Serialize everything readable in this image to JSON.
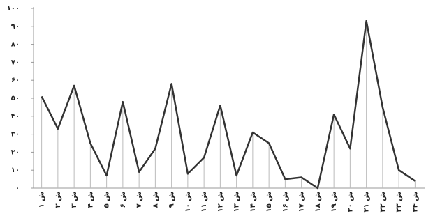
{
  "chart_data": {
    "type": "line",
    "categories": [
      "ش ۱",
      "ش ۲",
      "ش ۳",
      "ش ۴",
      "ش ۵",
      "ش ۶",
      "ش ۷",
      "ش ۸",
      "ش ۹",
      "ش ۱۰",
      "ش ۱۱",
      "ش ۱۲",
      "ش ۱۳",
      "ش ۱۴",
      "ش ۱۵",
      "ش ۱۶",
      "ش ۱۷",
      "ش ۱۸",
      "ش ۱۹",
      "ش ۲۰",
      "ش ۲۱",
      "ش ۲۲",
      "ش ۲۳",
      "ش ۲۴"
    ],
    "values": [
      51,
      33,
      57,
      25,
      7,
      48,
      9,
      22,
      58,
      8,
      17,
      46,
      7,
      31,
      25,
      5,
      6,
      0,
      41,
      22,
      93,
      45,
      10,
      4
    ],
    "color": "#333333",
    "ylim": [
      0,
      100
    ],
    "yticks": [
      {
        "value": 0,
        "label": "۰"
      },
      {
        "value": 10,
        "label": "۱۰"
      },
      {
        "value": 20,
        "label": "۲۰"
      },
      {
        "value": 30,
        "label": "۳۰"
      },
      {
        "value": 40,
        "label": "۴۰"
      },
      {
        "value": 50,
        "label": "۵۰"
      },
      {
        "value": 60,
        "label": "۶۰"
      },
      {
        "value": 70,
        "label": "۷۰"
      },
      {
        "value": 80,
        "label": "۸۰"
      },
      {
        "value": 90,
        "label": "۹۰"
      },
      {
        "value": 100,
        "label": "۱۰۰"
      }
    ]
  }
}
